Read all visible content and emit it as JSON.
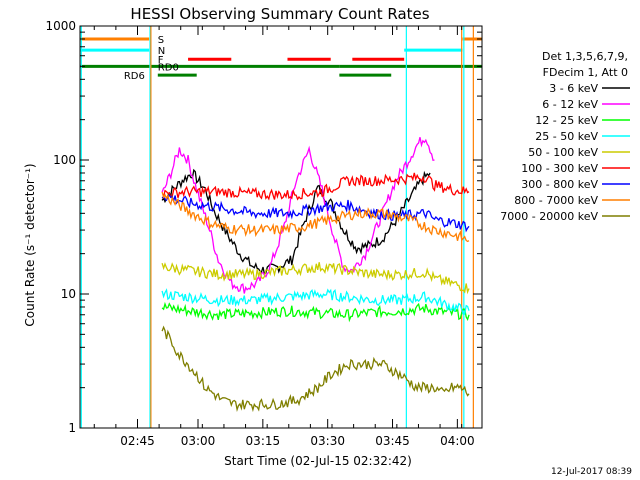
{
  "chart_data": {
    "type": "line",
    "title": "HESSI Observing Summary Count Rates",
    "xlabel": "Start Time (02-Jul-15 02:32:42)",
    "ylabel": "Count Rate (s⁻¹ detector⁻¹)",
    "y_scale": "log",
    "ylim": [
      1,
      1000
    ],
    "xlim_minutes_after_start": [
      0,
      93
    ],
    "x_tick_labels": [
      "02:45",
      "03:00",
      "03:15",
      "03:30",
      "03:45",
      "04:00"
    ],
    "x_tick_minutes": [
      13.3,
      27.3,
      42.3,
      57.3,
      72.3,
      87.3
    ],
    "y_tick_labels": [
      "1",
      "10",
      "100",
      "1000"
    ],
    "y_tick_values": [
      1,
      10,
      100,
      1000
    ],
    "legend": {
      "header_line1": "Det 1,3,5,6,7,9,",
      "header_line2": "FDecim 1, Att 0",
      "placement": "right"
    },
    "series": [
      {
        "name": "3 - 6 keV",
        "color": "#000000",
        "x": [
          19,
          21,
          24,
          26,
          29,
          31,
          34,
          37,
          40,
          43,
          46,
          49,
          52,
          55,
          58,
          61,
          64,
          67,
          70,
          73,
          76,
          79,
          81
        ],
        "y": [
          50,
          58,
          72,
          80,
          60,
          42,
          28,
          20,
          16,
          15,
          16,
          18,
          35,
          62,
          48,
          30,
          22,
          23,
          26,
          35,
          50,
          70,
          80
        ]
      },
      {
        "name": "6 - 12 keV",
        "color": "#ff00ff",
        "x": [
          19,
          21,
          23,
          25,
          27,
          30,
          32,
          35,
          38,
          41,
          44,
          47,
          50,
          53,
          56,
          59,
          61,
          63,
          66,
          70,
          73,
          76,
          78,
          80,
          82
        ],
        "y": [
          55,
          80,
          120,
          100,
          60,
          30,
          18,
          12,
          11,
          12,
          16,
          30,
          70,
          120,
          60,
          25,
          16,
          15,
          20,
          40,
          70,
          100,
          130,
          150,
          100
        ]
      },
      {
        "name": "12 - 25 keV",
        "color": "#00ff00",
        "x": [
          19,
          25,
          32,
          40,
          48,
          56,
          62,
          68,
          74,
          80,
          82,
          86,
          90
        ],
        "y": [
          8,
          7.5,
          7,
          7.2,
          7.5,
          7.2,
          7.0,
          7.3,
          7.5,
          7.8,
          7.5,
          7.2,
          7
        ]
      },
      {
        "name": "25 - 50 keV",
        "color": "#00ffff",
        "x": [
          19,
          25,
          32,
          40,
          48,
          56,
          62,
          68,
          74,
          80,
          82,
          86,
          90
        ],
        "y": [
          10,
          9.5,
          9,
          9,
          9.5,
          10,
          9.5,
          9,
          9,
          9.5,
          9,
          8,
          7.5
        ]
      },
      {
        "name": "50 - 100 keV",
        "color": "#cccc00",
        "x": [
          19,
          25,
          32,
          40,
          48,
          56,
          62,
          68,
          74,
          80,
          82,
          86,
          90
        ],
        "y": [
          16,
          15,
          14,
          14,
          15,
          16,
          15,
          14,
          14,
          14.5,
          13,
          12,
          11
        ]
      },
      {
        "name": "100 - 300 keV",
        "color": "#ff0000",
        "x": [
          19,
          25,
          32,
          40,
          48,
          56,
          62,
          68,
          74,
          80,
          82,
          86,
          90
        ],
        "y": [
          56,
          58,
          58,
          56,
          55,
          58,
          70,
          70,
          72,
          75,
          65,
          60,
          58
        ]
      },
      {
        "name": "300 - 800 keV",
        "color": "#0000ff",
        "x": [
          19,
          25,
          32,
          40,
          48,
          56,
          62,
          68,
          74,
          80,
          82,
          86,
          90
        ],
        "y": [
          55,
          48,
          44,
          40,
          40,
          44,
          46,
          40,
          38,
          40,
          36,
          34,
          32
        ]
      },
      {
        "name": "800 - 7000 keV",
        "color": "#ff7f00",
        "x": [
          19,
          22,
          26,
          30,
          34,
          40,
          46,
          52,
          58,
          64,
          70,
          76,
          80,
          82,
          86,
          90
        ],
        "y": [
          55,
          48,
          40,
          34,
          31,
          30,
          30,
          32,
          36,
          40,
          40,
          36,
          32,
          30,
          28,
          25
        ]
      },
      {
        "name": "7000 - 20000 keV",
        "color": "#7f7f00",
        "x": [
          19,
          21,
          23,
          25,
          27,
          29,
          31,
          33,
          36,
          40,
          45,
          50,
          55,
          58,
          62,
          66,
          70,
          74,
          78,
          82,
          84,
          86,
          88,
          90
        ],
        "y": [
          5.5,
          4.5,
          3.5,
          3,
          2.5,
          2,
          1.8,
          1.6,
          1.5,
          1.5,
          1.5,
          1.6,
          2,
          2.5,
          3,
          3,
          3,
          2.5,
          2,
          2,
          1.8,
          2,
          2,
          1.8
        ]
      }
    ],
    "flags": [
      {
        "label": "S",
        "color": "#ff7f00",
        "value": 800,
        "segments": [
          [
            0,
            16
          ],
          [
            88.5,
            93
          ]
        ]
      },
      {
        "label": "N",
        "color": "#00ffff",
        "value": 660,
        "segments": [
          [
            0,
            16
          ],
          [
            75,
            88.5
          ]
        ]
      },
      {
        "label": "F",
        "color": "#ff0000",
        "value": 565,
        "segments": [
          [
            25,
            35
          ],
          [
            48,
            58
          ],
          [
            63,
            75
          ]
        ]
      },
      {
        "label": "RD0",
        "color": "#007f00",
        "value": 500,
        "segments": [
          [
            0,
            16
          ],
          [
            16,
            60
          ],
          [
            60,
            93
          ]
        ]
      },
      {
        "label": "RD6",
        "color": "#007f00",
        "value": 430,
        "segments": [
          [
            18,
            27
          ],
          [
            60,
            72
          ]
        ]
      }
    ],
    "vertical_markers": [
      {
        "color": "#00ffff",
        "x": 0.3
      },
      {
        "color": "#00ffff",
        "x": 16.2
      },
      {
        "color": "#ff7f00",
        "x": 16.4
      },
      {
        "color": "#00ffff",
        "x": 75.5
      },
      {
        "color": "#ff7f00",
        "x": 88.3
      },
      {
        "color": "#00ffff",
        "x": 88.8
      },
      {
        "color": "#ff7f00",
        "x": 91
      }
    ],
    "grid": false
  },
  "footer": {
    "date_stamp": "12-Jul-2017 08:39"
  }
}
